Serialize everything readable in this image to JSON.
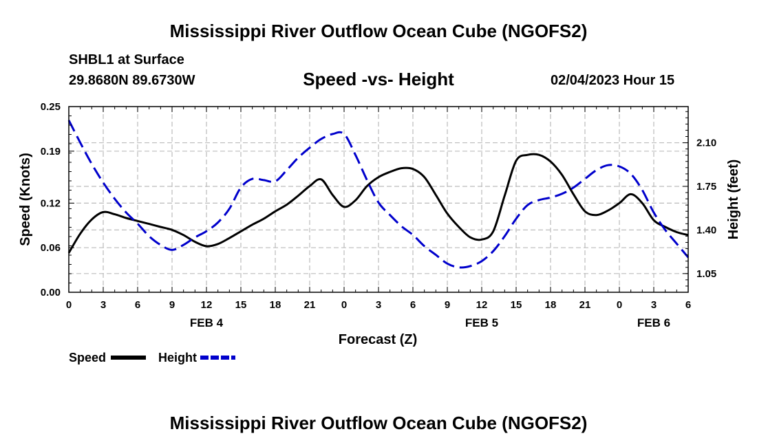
{
  "header": {
    "title": "Mississippi River Outflow Ocean Cube (NGOFS2)",
    "station": "SHBL1 at Surface",
    "coords": "29.8680N  89.6730W",
    "subtitle": "Speed -vs- Height",
    "datetime": "02/04/2023 Hour 15",
    "footer_title": "Mississippi River Outflow Ocean Cube (NGOFS2)"
  },
  "colors": {
    "speed": "#000000",
    "height": "#0000cc",
    "grid": "#bbbbbb"
  },
  "chart_data": {
    "type": "line",
    "title": "Speed -vs- Height",
    "xlabel": "Forecast (Z)",
    "ylabel": "Speed (Knots)",
    "y2label": "Height (feet)",
    "x_range": [
      0,
      54
    ],
    "x_tick_hours": [
      0,
      3,
      6,
      9,
      12,
      15,
      18,
      21,
      24,
      27,
      30,
      33,
      36,
      39,
      42,
      45,
      48,
      51,
      54
    ],
    "x_tick_labels": [
      "0",
      "3",
      "6",
      "9",
      "12",
      "15",
      "18",
      "21",
      "0",
      "3",
      "6",
      "9",
      "12",
      "15",
      "18",
      "21",
      "0",
      "3",
      "6"
    ],
    "date_labels": [
      {
        "label": "FEB 4",
        "hour": 12
      },
      {
        "label": "FEB 5",
        "hour": 36
      },
      {
        "label": "FEB 6",
        "hour": 51
      }
    ],
    "ylim": [
      0,
      0.25
    ],
    "y_ticks": [
      0.0,
      0.06,
      0.12,
      0.19,
      0.25
    ],
    "y_tick_labels": [
      "0.00",
      "0.06",
      "0.12",
      "0.19",
      "0.25"
    ],
    "y2lim": [
      0.9,
      2.39
    ],
    "y2_ticks": [
      1.05,
      1.4,
      1.75,
      2.1
    ],
    "y2_tick_labels": [
      "1.05",
      "1.40",
      "1.75",
      "2.10"
    ],
    "grid": true,
    "legend": {
      "placement": "bottom-left",
      "speed_label": "Speed",
      "height_label": "Height"
    },
    "series": [
      {
        "name": "Speed",
        "axis": "left",
        "style": "solid",
        "x": [
          0,
          1,
          2,
          3,
          4,
          5,
          6,
          7,
          8,
          9,
          10,
          11,
          12,
          13,
          14,
          15,
          16,
          17,
          18,
          19,
          20,
          21,
          22,
          23,
          24,
          25,
          26,
          27,
          28,
          29,
          30,
          31,
          32,
          33,
          34,
          35,
          36,
          37,
          38,
          39,
          40,
          41,
          42,
          43,
          44,
          45,
          46,
          47,
          48,
          49,
          50,
          51,
          52,
          53,
          54
        ],
        "values": [
          0.053,
          0.079,
          0.098,
          0.108,
          0.105,
          0.1,
          0.096,
          0.092,
          0.088,
          0.084,
          0.077,
          0.068,
          0.062,
          0.065,
          0.073,
          0.082,
          0.091,
          0.099,
          0.109,
          0.118,
          0.13,
          0.143,
          0.152,
          0.131,
          0.115,
          0.124,
          0.143,
          0.155,
          0.162,
          0.167,
          0.166,
          0.155,
          0.131,
          0.106,
          0.088,
          0.074,
          0.071,
          0.082,
          0.13,
          0.177,
          0.185,
          0.185,
          0.176,
          0.158,
          0.132,
          0.109,
          0.104,
          0.11,
          0.12,
          0.132,
          0.12,
          0.097,
          0.088,
          0.081,
          0.077
        ]
      },
      {
        "name": "Height",
        "axis": "right",
        "style": "dashed",
        "x": [
          0,
          1,
          2,
          3,
          4,
          5,
          6,
          7,
          8,
          9,
          10,
          11,
          12,
          13,
          14,
          15,
          16,
          17,
          18,
          19,
          20,
          21,
          22,
          23,
          24,
          25,
          26,
          27,
          28,
          29,
          30,
          31,
          32,
          33,
          34,
          35,
          36,
          37,
          38,
          39,
          40,
          41,
          42,
          43,
          44,
          45,
          46,
          47,
          48,
          49,
          50,
          51,
          52,
          53,
          54
        ],
        "values": [
          2.28,
          2.1,
          1.93,
          1.78,
          1.65,
          1.54,
          1.45,
          1.35,
          1.28,
          1.24,
          1.28,
          1.34,
          1.39,
          1.46,
          1.57,
          1.74,
          1.81,
          1.8,
          1.79,
          1.88,
          1.98,
          2.06,
          2.13,
          2.17,
          2.17,
          2.0,
          1.8,
          1.62,
          1.52,
          1.43,
          1.36,
          1.27,
          1.2,
          1.13,
          1.1,
          1.11,
          1.15,
          1.23,
          1.35,
          1.49,
          1.6,
          1.64,
          1.66,
          1.69,
          1.74,
          1.81,
          1.88,
          1.92,
          1.91,
          1.85,
          1.72,
          1.54,
          1.4,
          1.29,
          1.18
        ]
      }
    ]
  }
}
